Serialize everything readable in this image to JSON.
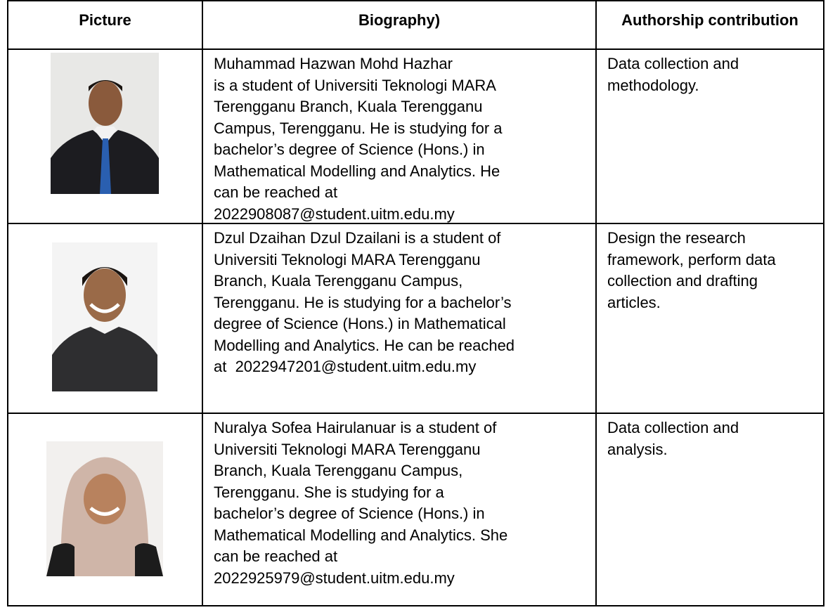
{
  "table": {
    "header": [
      "Picture",
      "Biography)",
      "Authorship contribution"
    ],
    "rows": [
      {
        "biography": [
          "Muhammad Hazwan Mohd Hazhar",
          "is a student of Universiti Teknologi MARA",
          "Terengganu Branch, Kuala Terengganu",
          "Campus, Terengganu. He is studying for a",
          "bachelor’s degree of Science (Hons.) in",
          "Mathematical Modelling and Analytics. He",
          "can be reached at",
          "2022908087@student.uitm.edu.my"
        ],
        "contribution": [
          "Data collection and",
          "methodology."
        ]
      },
      {
        "biography": [
          "Dzul Dzaihan Dzul Dzailani is a student of",
          "Universiti Teknologi MARA Terengganu",
          "Branch, Kuala Terengganu Campus,",
          "Terengganu. He is studying for a bachelor’s",
          "degree of Science (Hons.) in Mathematical",
          "Modelling and Analytics. He can be reached",
          "at  2022947201@student.uitm.edu.my"
        ],
        "contribution": [
          "Design the research",
          "framework, perform data",
          "collection and drafting",
          "articles."
        ]
      },
      {
        "biography": [
          "Nuralya Sofea Hairulanuar is a student of",
          "Universiti Teknologi MARA Terengganu",
          "Branch, Kuala Terengganu Campus,",
          "Terengganu. She is studying for a",
          "bachelor’s degree of Science (Hons.) in",
          "Mathematical Modelling and Analytics. She",
          "can be reached at",
          "2022925979@student.uitm.edu.my"
        ],
        "contribution": [
          "Data collection and",
          "analysis."
        ]
      }
    ]
  }
}
